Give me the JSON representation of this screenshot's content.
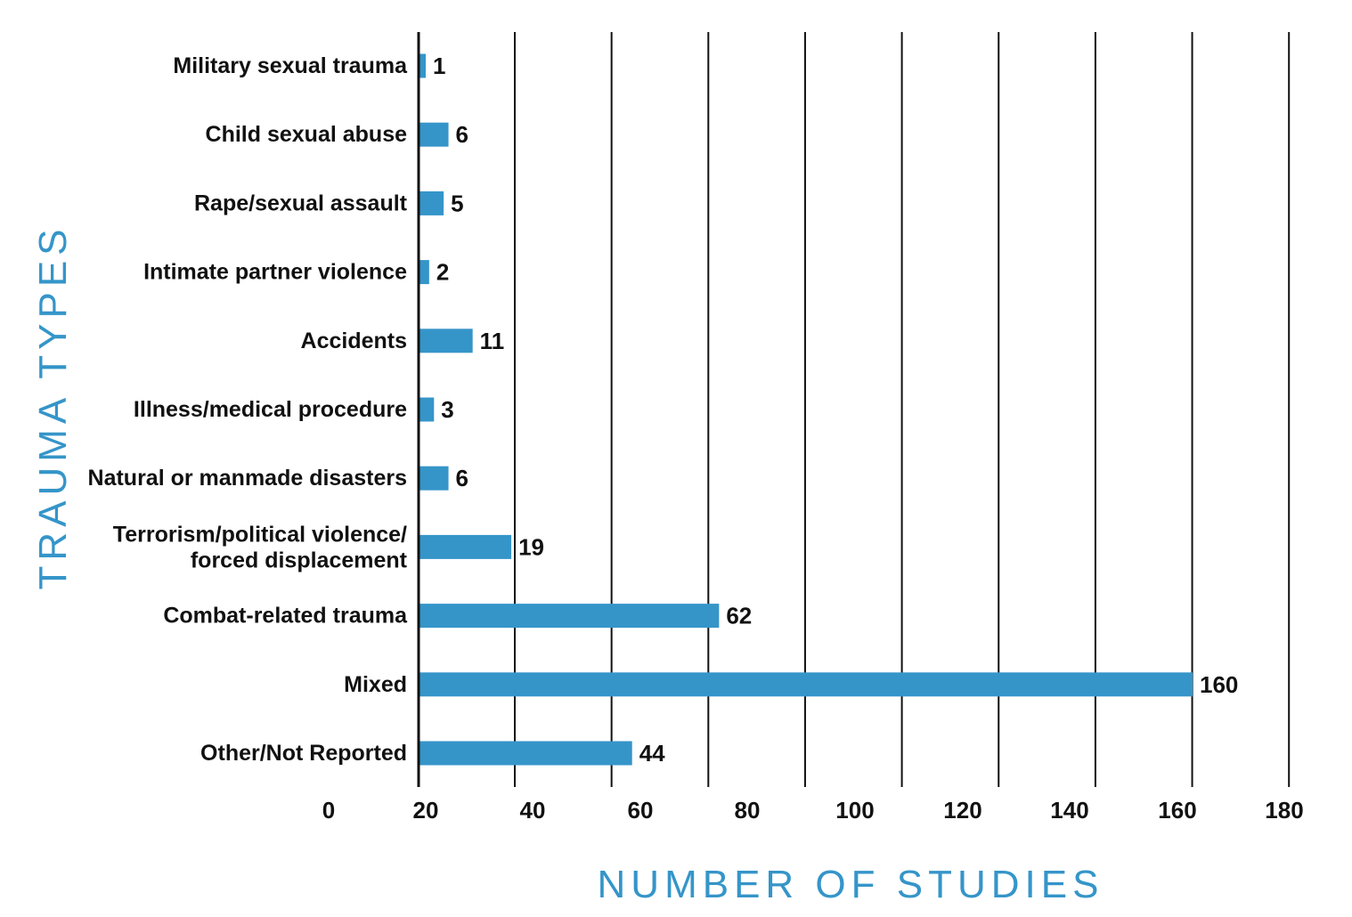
{
  "chart_data": {
    "type": "bar",
    "orientation": "horizontal",
    "title": "",
    "xlabel": "NUMBER OF STUDIES",
    "ylabel": "TRAUMA TYPES",
    "categories": [
      "Military sexual trauma",
      "Child sexual abuse",
      "Rape/sexual assault",
      "Intimate partner violence",
      "Accidents",
      "Illness/medical procedure",
      "Natural or manmade disasters",
      "Terrorism/political violence/ forced displacement",
      "Combat-related trauma",
      "Mixed",
      "Other/Not Reported"
    ],
    "category_lines": [
      [
        "Military sexual trauma"
      ],
      [
        "Child sexual abuse"
      ],
      [
        "Rape/sexual assault"
      ],
      [
        "Intimate partner violence"
      ],
      [
        "Accidents"
      ],
      [
        "Illness/medical procedure"
      ],
      [
        "Natural or manmade disasters"
      ],
      [
        "Terrorism/political violence/",
        "forced displacement"
      ],
      [
        "Combat-related trauma"
      ],
      [
        "Mixed"
      ],
      [
        "Other/Not Reported"
      ]
    ],
    "values": [
      1,
      6,
      5,
      2,
      11,
      3,
      6,
      19,
      62,
      160,
      44
    ],
    "value_labels": [
      "1",
      "6",
      "5",
      "2",
      "11",
      "3",
      "6",
      "19",
      "62",
      "160",
      "44"
    ],
    "xlim": [
      0,
      180
    ],
    "xticks": [
      0,
      20,
      40,
      60,
      80,
      100,
      120,
      140,
      160,
      180
    ],
    "xtick_labels": [
      "0",
      "20",
      "40",
      "60",
      "80",
      "100",
      "120",
      "140",
      "160",
      "180"
    ],
    "grid": "vertical",
    "bar_color": "#3595c9",
    "axis_title_color": "#3595c9",
    "gridline_color": "#111111"
  }
}
